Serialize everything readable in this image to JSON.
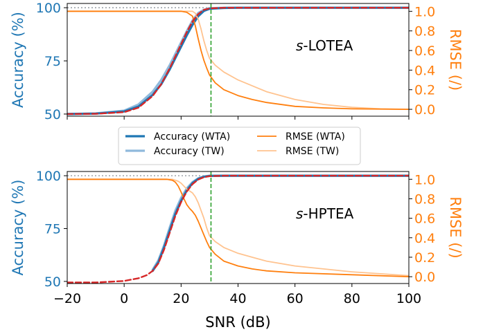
{
  "colors": {
    "accuracy_axis": "#1f77b4",
    "rmse_axis": "#ff7f0e",
    "acc_wta": "#1f77b4",
    "acc_tw": "#8fb9dc",
    "rmse_wta": "#ff7f0e",
    "rmse_tw": "#ffc38f",
    "fit": "#d62728",
    "threshold": "#2ca02c",
    "reference": "#9aa0a6"
  },
  "legend": {
    "placement": "between-panels",
    "items": [
      {
        "label": "Accuracy (WTA)",
        "series": "acc_wta"
      },
      {
        "label": "Accuracy (TW)",
        "series": "acc_tw"
      },
      {
        "label": "RMSE (WTA)",
        "series": "rmse_wta"
      },
      {
        "label": "RMSE (TW)",
        "series": "rmse_tw"
      }
    ]
  },
  "chart_data": [
    {
      "type": "line",
      "panel_label": "s-LOTEA",
      "panel_label_prefix": "s",
      "panel_label_suffix": "-LOTEA",
      "xlabel": "",
      "ylabel_left": "Accuracy (%)",
      "ylabel_right": "RMSE (/)",
      "xlim": [
        -20,
        100
      ],
      "ylim_left": [
        49,
        102
      ],
      "ylim_right": [
        -0.07,
        1.08
      ],
      "yticks_left": [
        "50",
        "75",
        "100"
      ],
      "yticks_right": [
        "0.0",
        "0.2",
        "0.4",
        "0.6",
        "0.8",
        "1.0"
      ],
      "reference_line_y": 100,
      "threshold_x": 30.5,
      "series": [
        {
          "key": "acc_wta",
          "axis": "left",
          "x": [
            -20,
            -10,
            0,
            5,
            10,
            13,
            16,
            19,
            22,
            24,
            26,
            28,
            30,
            35,
            40,
            100
          ],
          "y": [
            50,
            50.2,
            51.2,
            53.5,
            59,
            64,
            71,
            79,
            87,
            92,
            96,
            98.5,
            99.5,
            99.9,
            100,
            100
          ]
        },
        {
          "key": "acc_tw",
          "axis": "left",
          "x": [
            -20,
            -10,
            0,
            5,
            10,
            13,
            16,
            19,
            22,
            24,
            26,
            28,
            30,
            35,
            40,
            100
          ],
          "y": [
            50,
            50.3,
            51.6,
            54.5,
            60.5,
            66,
            73,
            81,
            89,
            94,
            97.5,
            99,
            99.8,
            100,
            100,
            100
          ]
        },
        {
          "key": "rmse_wta",
          "axis": "right",
          "x": [
            -20,
            20,
            22,
            24,
            25,
            26,
            27,
            28,
            29,
            30,
            32,
            35,
            40,
            45,
            50,
            60,
            70,
            80,
            100
          ],
          "y": [
            1.0,
            1.0,
            0.99,
            0.95,
            0.85,
            0.72,
            0.6,
            0.5,
            0.42,
            0.35,
            0.27,
            0.2,
            0.14,
            0.1,
            0.07,
            0.03,
            0.015,
            0.005,
            0.0
          ]
        },
        {
          "key": "rmse_tw",
          "axis": "right",
          "x": [
            -20,
            24,
            25,
            26,
            27,
            28,
            29,
            30,
            32,
            35,
            40,
            45,
            50,
            55,
            60,
            70,
            80,
            90,
            100
          ],
          "y": [
            1.0,
            1.0,
            0.98,
            0.92,
            0.82,
            0.7,
            0.6,
            0.52,
            0.45,
            0.38,
            0.3,
            0.24,
            0.18,
            0.14,
            0.1,
            0.05,
            0.02,
            0.005,
            0.0
          ]
        },
        {
          "key": "fit",
          "axis": "left",
          "style": "dashed",
          "x": [
            -20,
            -10,
            0,
            5,
            10,
            13,
            16,
            19,
            22,
            24,
            26,
            28,
            30,
            35,
            40,
            100
          ],
          "y": [
            50,
            50.1,
            50.9,
            53,
            58.5,
            64,
            71.5,
            80,
            88.5,
            93.5,
            97,
            99,
            99.7,
            100,
            100,
            100
          ]
        }
      ]
    },
    {
      "type": "line",
      "panel_label": "s-HPTEA",
      "panel_label_prefix": "s",
      "panel_label_suffix": "-HPTEA",
      "xlabel": "SNR (dB)",
      "ylabel_left": "Accuracy (%)",
      "ylabel_right": "RMSE (/)",
      "xlim": [
        -20,
        100
      ],
      "xticks": [
        "−20",
        "0",
        "20",
        "40",
        "60",
        "80",
        "100"
      ],
      "ylim_left": [
        49,
        102
      ],
      "ylim_right": [
        -0.07,
        1.08
      ],
      "yticks_left": [
        "50",
        "75",
        "100"
      ],
      "yticks_right": [
        "0.0",
        "0.2",
        "0.4",
        "0.6",
        "0.8",
        "1.0"
      ],
      "reference_line_y": 100,
      "threshold_x": 30.5,
      "series": [
        {
          "key": "acc_wta",
          "axis": "left",
          "x": [
            10,
            12,
            14,
            16,
            18,
            20,
            22,
            24,
            26,
            28,
            30,
            35,
            40,
            100
          ],
          "y": [
            55,
            59,
            66,
            74,
            82,
            88,
            93,
            96.5,
            98.5,
            99.5,
            99.9,
            100,
            100,
            100
          ]
        },
        {
          "key": "acc_tw",
          "axis": "left",
          "x": [
            10,
            12,
            14,
            16,
            18,
            20,
            22,
            24,
            26,
            28,
            30,
            35,
            40,
            100
          ],
          "y": [
            55.5,
            60,
            67,
            75.5,
            83.5,
            89.5,
            94,
            97,
            98.8,
            99.6,
            100,
            100,
            100,
            100
          ]
        },
        {
          "key": "rmse_wta",
          "axis": "right",
          "x": [
            -20,
            15,
            17,
            18,
            19,
            20,
            21,
            22,
            23,
            24,
            25,
            26,
            27,
            28,
            29,
            30,
            32,
            35,
            40,
            45,
            50,
            60,
            80,
            100
          ],
          "y": [
            1.0,
            1.0,
            0.99,
            0.97,
            0.93,
            0.87,
            0.8,
            0.74,
            0.7,
            0.67,
            0.63,
            0.57,
            0.5,
            0.43,
            0.36,
            0.3,
            0.23,
            0.16,
            0.11,
            0.08,
            0.06,
            0.04,
            0.02,
            0.0
          ]
        },
        {
          "key": "rmse_tw",
          "axis": "right",
          "x": [
            -20,
            17,
            19,
            20,
            21,
            22,
            23,
            24,
            25,
            26,
            27,
            28,
            29,
            30,
            32,
            35,
            40,
            45,
            50,
            60,
            70,
            80,
            90,
            100
          ],
          "y": [
            1.0,
            1.0,
            0.98,
            0.96,
            0.93,
            0.9,
            0.88,
            0.86,
            0.82,
            0.76,
            0.68,
            0.6,
            0.5,
            0.42,
            0.36,
            0.3,
            0.24,
            0.2,
            0.16,
            0.11,
            0.08,
            0.05,
            0.03,
            0.01
          ]
        },
        {
          "key": "fit",
          "axis": "left",
          "style": "dashed",
          "x": [
            -20,
            -10,
            0,
            5,
            8,
            10,
            12,
            14,
            16,
            18,
            20,
            22,
            24,
            26,
            28,
            30,
            35,
            40,
            100
          ],
          "y": [
            49.5,
            49.5,
            50.2,
            51.5,
            53,
            55,
            58.5,
            65,
            73,
            81,
            87.5,
            92.5,
            96,
            98.2,
            99.3,
            99.8,
            100,
            100,
            100
          ]
        }
      ]
    }
  ]
}
